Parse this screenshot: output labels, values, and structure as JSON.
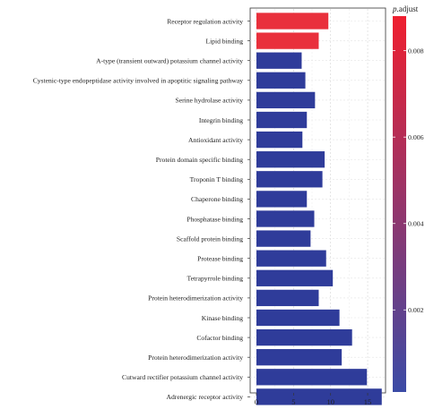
{
  "chart_data": {
    "type": "bar",
    "orientation": "horizontal",
    "categories": [
      "Receptor regulation activity",
      "Lipid binding",
      "A-type (transient outward) potassium channel activity",
      "Cystenic-type endopeptidase activity involved in apoptitic signaling pathway",
      "Serine hydrolase activity",
      "Integrin binding",
      "Antioxidant activity",
      "Protein domain specific binding",
      "Troponin T binding",
      "Chaperone binding",
      "Phosphatase binding",
      "Scaffold protein binding",
      "Protease binding",
      "Tetrapyrrole binding",
      "Protein heterodimerization activity",
      "Kinase binding",
      "Cofactor binding",
      "Protein heterodimerization activity",
      "Cutward rectifier potassium channel activity",
      "Adrenergic receptor activity"
    ],
    "values": [
      9.7,
      8.4,
      6.1,
      6.6,
      7.9,
      6.8,
      6.2,
      9.2,
      8.9,
      6.8,
      7.8,
      7.3,
      9.4,
      10.3,
      8.4,
      11.2,
      12.9,
      11.5,
      14.9,
      16.9
    ],
    "bar_colors": [
      "#e9303c",
      "#e9303c",
      "#2f3c9a",
      "#2f3c9a",
      "#2f3c9a",
      "#2f3c9a",
      "#2f3c9a",
      "#2f3c9a",
      "#2f3c9a",
      "#2f3c9a",
      "#2f3c9a",
      "#2f3c9a",
      "#2f3c9a",
      "#2f3c9a",
      "#2f3c9a",
      "#2f3c9a",
      "#2f3c9a",
      "#2f3c9a",
      "#2f3c9a",
      "#2f3c9a"
    ],
    "xlim": [
      0,
      17.5
    ],
    "x_ticks": [
      0,
      5,
      10,
      15
    ],
    "xlabel": "",
    "ylabel": "",
    "title": "",
    "grid": true,
    "colorbar": {
      "title_italic": "p",
      "title_rest": ".adjust",
      "range": [
        0.0001,
        0.0088
      ],
      "ticks": [
        0.002,
        0.004,
        0.006,
        0.008
      ],
      "tick_labels": [
        "0.002",
        "0.004",
        "0.006",
        "0.008"
      ],
      "color_low": "#3b4ba6",
      "color_high": "#ef1f2f"
    }
  }
}
